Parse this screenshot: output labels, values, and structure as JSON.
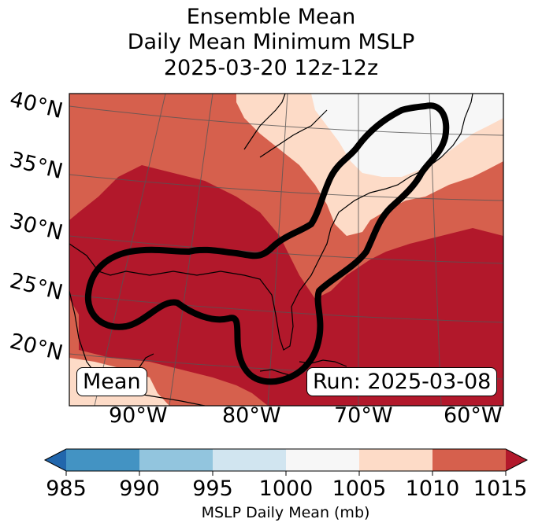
{
  "title": {
    "line1": "Ensemble Mean",
    "line2": "Daily Mean Minimum MSLP",
    "line3": "2025-03-20 12z-12z"
  },
  "map": {
    "lat_labels": [
      "40°N",
      "35°N",
      "30°N",
      "25°N",
      "20°N"
    ],
    "lon_labels": [
      "90°W",
      "80°W",
      "70°W",
      "60°W"
    ],
    "mean_box": "Mean",
    "run_box": "Run: 2025-03-08",
    "fill_colors": {
      "1000_1005": "#f7f7f7",
      "1005_1010": "#fddbc7",
      "1010_1015": "#d6604d",
      "over_1015": "#b2182b"
    }
  },
  "colorbar": {
    "ticks": [
      "985",
      "990",
      "995",
      "1000",
      "1005",
      "1010",
      "1015"
    ],
    "label": "MSLP Daily Mean (mb)",
    "colors": [
      "#2166ac",
      "#4393c3",
      "#92c5de",
      "#d1e5f0",
      "#f7f7f7",
      "#fddbc7",
      "#d6604d",
      "#b2182b"
    ]
  }
}
